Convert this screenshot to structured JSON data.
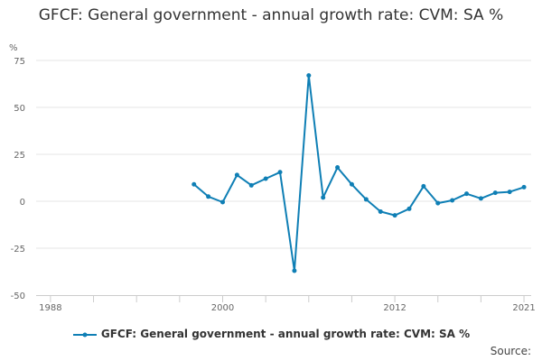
{
  "chart_data": {
    "type": "line",
    "title": "GFCF: General government - annual growth rate: CVM: SA %",
    "ylabel": "%",
    "xlabel": "",
    "ylim": [
      -50,
      75
    ],
    "xlim": [
      1987,
      2021.5
    ],
    "yticks": [
      -50,
      -25,
      0,
      25,
      50,
      75
    ],
    "xticks": [
      1988,
      2000,
      2012,
      2021
    ],
    "grid": true,
    "legend_position": "bottom",
    "series": [
      {
        "name": "GFCF: General government - annual growth rate: CVM: SA %",
        "color": "#0f7fb5",
        "x": [
          1998,
          1999,
          2000,
          2001,
          2002,
          2003,
          2004,
          2005,
          2006,
          2007,
          2008,
          2009,
          2010,
          2011,
          2012,
          2013,
          2014,
          2015,
          2016,
          2017,
          2018,
          2019,
          2020,
          2021
        ],
        "values": [
          9,
          2.5,
          -0.5,
          14,
          8.5,
          12,
          15.5,
          -37,
          67,
          2,
          18,
          9,
          1,
          -5.5,
          -7.5,
          -4,
          8,
          -1,
          0.5,
          4,
          1.5,
          4.5,
          5,
          7.5
        ]
      }
    ]
  },
  "footer": {
    "source_label": "Source:"
  }
}
